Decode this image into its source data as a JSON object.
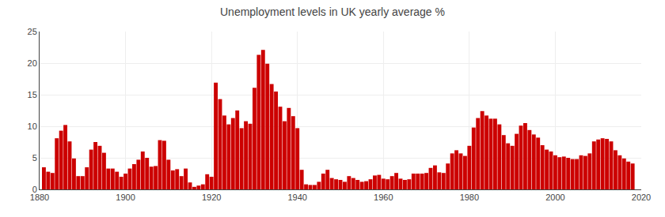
{
  "chart_data": {
    "type": "bar",
    "title": "Unemployment levels in UK yearly average %",
    "x": [
      1881,
      1882,
      1883,
      1884,
      1885,
      1886,
      1887,
      1888,
      1889,
      1890,
      1891,
      1892,
      1893,
      1894,
      1895,
      1896,
      1897,
      1898,
      1899,
      1900,
      1901,
      1902,
      1903,
      1904,
      1905,
      1906,
      1907,
      1908,
      1909,
      1910,
      1911,
      1912,
      1913,
      1914,
      1915,
      1916,
      1917,
      1918,
      1919,
      1920,
      1921,
      1922,
      1923,
      1924,
      1925,
      1926,
      1927,
      1928,
      1929,
      1930,
      1931,
      1932,
      1933,
      1934,
      1935,
      1936,
      1937,
      1938,
      1939,
      1940,
      1941,
      1942,
      1943,
      1944,
      1945,
      1946,
      1947,
      1948,
      1949,
      1950,
      1951,
      1952,
      1953,
      1954,
      1955,
      1956,
      1957,
      1958,
      1959,
      1960,
      1961,
      1962,
      1963,
      1964,
      1965,
      1966,
      1967,
      1968,
      1969,
      1970,
      1971,
      1972,
      1973,
      1974,
      1975,
      1976,
      1977,
      1978,
      1979,
      1980,
      1981,
      1982,
      1983,
      1984,
      1985,
      1986,
      1987,
      1988,
      1989,
      1990,
      1991,
      1992,
      1993,
      1994,
      1995,
      1996,
      1997,
      1998,
      1999,
      2000,
      2001,
      2002,
      2003,
      2004,
      2005,
      2006,
      2007,
      2008,
      2009,
      2010,
      2011,
      2012,
      2013,
      2014,
      2015,
      2016,
      2017,
      2018
    ],
    "values": [
      3.5,
      2.8,
      2.6,
      8.1,
      9.3,
      10.2,
      7.6,
      4.9,
      2.1,
      2.1,
      3.5,
      6.3,
      7.5,
      6.9,
      5.8,
      3.3,
      3.3,
      2.8,
      2.0,
      2.5,
      3.3,
      4.0,
      4.7,
      6.0,
      5.0,
      3.6,
      3.7,
      7.8,
      7.7,
      4.7,
      3.0,
      3.2,
      2.1,
      3.3,
      1.1,
      0.4,
      0.6,
      0.8,
      2.4,
      2.0,
      16.9,
      14.3,
      11.7,
      10.3,
      11.3,
      12.5,
      9.7,
      10.8,
      10.4,
      16.1,
      21.3,
      22.1,
      19.9,
      16.7,
      15.5,
      13.1,
      10.8,
      12.9,
      11.6,
      9.7,
      3.1,
      0.8,
      0.7,
      0.7,
      1.2,
      2.5,
      3.1,
      1.8,
      1.6,
      1.5,
      1.2,
      2.1,
      1.8,
      1.5,
      1.2,
      1.3,
      1.6,
      2.2,
      2.3,
      1.7,
      1.6,
      2.1,
      2.6,
      1.7,
      1.5,
      1.6,
      2.5,
      2.5,
      2.5,
      2.6,
      3.4,
      3.8,
      2.7,
      2.6,
      4.1,
      5.7,
      6.2,
      5.7,
      5.3,
      6.9,
      9.8,
      11.3,
      12.4,
      11.7,
      11.2,
      11.2,
      10.3,
      8.6,
      7.3,
      6.9,
      8.8,
      10.1,
      10.5,
      9.4,
      8.7,
      8.2,
      7.0,
      6.3,
      6.0,
      5.4,
      5.1,
      5.2,
      5.0,
      4.8,
      4.8,
      5.4,
      5.3,
      5.7,
      7.6,
      7.9,
      8.1,
      8.0,
      7.6,
      6.2,
      5.4,
      4.9,
      4.4,
      4.1
    ],
    "color": "#cc0000",
    "xlim": [
      1880,
      2020
    ],
    "xticks": [
      1880,
      1900,
      1920,
      1940,
      1960,
      1980,
      2000,
      2020
    ],
    "ylim": [
      0,
      25
    ],
    "yticks": [
      0,
      5,
      10,
      15,
      20,
      25
    ],
    "grid": true
  }
}
